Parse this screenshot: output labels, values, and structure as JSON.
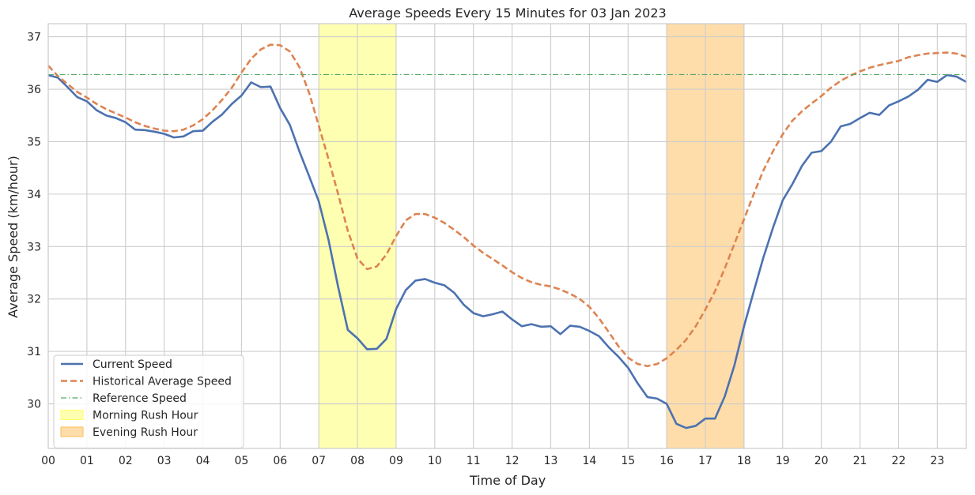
{
  "chart_data": {
    "type": "line",
    "title": "Average Speeds Every 15 Minutes for 03 Jan 2023",
    "xlabel": "Time of Day",
    "ylabel": "Average Speed (km/hour)",
    "xlim": [
      0,
      23.75
    ],
    "ylim": [
      29.15,
      37.25
    ],
    "x_ticks": [
      {
        "value": 0,
        "label": "00"
      },
      {
        "value": 1,
        "label": "01"
      },
      {
        "value": 2,
        "label": "02"
      },
      {
        "value": 3,
        "label": "03"
      },
      {
        "value": 4,
        "label": "04"
      },
      {
        "value": 5,
        "label": "05"
      },
      {
        "value": 6,
        "label": "06"
      },
      {
        "value": 7,
        "label": "07"
      },
      {
        "value": 8,
        "label": "08"
      },
      {
        "value": 9,
        "label": "09"
      },
      {
        "value": 10,
        "label": "10"
      },
      {
        "value": 11,
        "label": "11"
      },
      {
        "value": 12,
        "label": "12"
      },
      {
        "value": 13,
        "label": "13"
      },
      {
        "value": 14,
        "label": "14"
      },
      {
        "value": 15,
        "label": "15"
      },
      {
        "value": 16,
        "label": "16"
      },
      {
        "value": 17,
        "label": "17"
      },
      {
        "value": 18,
        "label": "18"
      },
      {
        "value": 19,
        "label": "19"
      },
      {
        "value": 20,
        "label": "20"
      },
      {
        "value": 21,
        "label": "21"
      },
      {
        "value": 22,
        "label": "22"
      },
      {
        "value": 23,
        "label": "23"
      }
    ],
    "y_ticks": [
      {
        "value": 30,
        "label": "30"
      },
      {
        "value": 31,
        "label": "31"
      },
      {
        "value": 32,
        "label": "32"
      },
      {
        "value": 33,
        "label": "33"
      },
      {
        "value": 34,
        "label": "34"
      },
      {
        "value": 35,
        "label": "35"
      },
      {
        "value": 36,
        "label": "36"
      },
      {
        "value": 37,
        "label": "37"
      }
    ],
    "grid": true,
    "legend_position": "lower-left",
    "series": [
      {
        "name": "Current Speed",
        "style": "solid",
        "color": "#4c72b0",
        "x": [
          0,
          0.25,
          0.5,
          0.75,
          1,
          1.25,
          1.5,
          1.75,
          2,
          2.25,
          2.5,
          2.75,
          3,
          3.25,
          3.5,
          3.75,
          4,
          4.25,
          4.5,
          4.75,
          5,
          5.25,
          5.5,
          5.75,
          6,
          6.25,
          6.5,
          6.75,
          7,
          7.25,
          7.5,
          7.75,
          8,
          8.25,
          8.5,
          8.75,
          9,
          9.25,
          9.5,
          9.75,
          10,
          10.25,
          10.5,
          10.75,
          11,
          11.25,
          11.5,
          11.75,
          12,
          12.25,
          12.5,
          12.75,
          13,
          13.25,
          13.5,
          13.75,
          14,
          14.25,
          14.5,
          14.75,
          15,
          15.25,
          15.5,
          15.75,
          16,
          16.25,
          16.5,
          16.75,
          17,
          17.25,
          17.5,
          17.75,
          18,
          18.25,
          18.5,
          18.75,
          19,
          19.25,
          19.5,
          19.75,
          20,
          20.25,
          20.5,
          20.75,
          21,
          21.25,
          21.5,
          21.75,
          22,
          22.25,
          22.5,
          22.75,
          23,
          23.25,
          23.5,
          23.75
        ],
        "values": [
          36.27,
          36.22,
          36.04,
          35.85,
          35.77,
          35.6,
          35.5,
          35.45,
          35.37,
          35.23,
          35.22,
          35.19,
          35.15,
          35.08,
          35.1,
          35.2,
          35.21,
          35.38,
          35.52,
          35.72,
          35.88,
          36.13,
          36.04,
          36.05,
          35.64,
          35.32,
          34.81,
          34.34,
          33.86,
          33.13,
          32.23,
          31.41,
          31.25,
          31.04,
          31.05,
          31.24,
          31.81,
          32.17,
          32.35,
          32.38,
          32.31,
          32.26,
          32.12,
          31.89,
          31.73,
          31.67,
          31.71,
          31.76,
          31.61,
          31.48,
          31.52,
          31.47,
          31.48,
          31.33,
          31.49,
          31.47,
          31.39,
          31.29,
          31.08,
          30.9,
          30.69,
          30.39,
          30.13,
          30.1,
          30.0,
          29.62,
          29.54,
          29.58,
          29.72,
          29.72,
          30.14,
          30.73,
          31.48,
          32.14,
          32.79,
          33.36,
          33.88,
          34.19,
          34.54,
          34.79,
          34.82,
          35.0,
          35.29,
          35.34,
          35.45,
          35.55,
          35.51,
          35.69,
          35.77,
          35.86,
          35.99,
          36.18,
          36.14,
          36.27,
          36.24,
          36.14
        ]
      },
      {
        "name": "Historical Average Speed",
        "style": "dashed",
        "color": "#dd8452",
        "x": [
          0,
          0.25,
          0.5,
          0.75,
          1,
          1.25,
          1.5,
          1.75,
          2,
          2.25,
          2.5,
          2.75,
          3,
          3.25,
          3.5,
          3.75,
          4,
          4.25,
          4.5,
          4.75,
          5,
          5.25,
          5.5,
          5.75,
          6,
          6.25,
          6.5,
          6.75,
          7,
          7.25,
          7.5,
          7.75,
          8,
          8.25,
          8.5,
          8.75,
          9,
          9.25,
          9.5,
          9.75,
          10,
          10.25,
          10.5,
          10.75,
          11,
          11.25,
          11.5,
          11.75,
          12,
          12.25,
          12.5,
          12.75,
          13,
          13.25,
          13.5,
          13.75,
          14,
          14.25,
          14.5,
          14.75,
          15,
          15.25,
          15.5,
          15.75,
          16,
          16.25,
          16.5,
          16.75,
          17,
          17.25,
          17.5,
          17.75,
          18,
          18.25,
          18.5,
          18.75,
          19,
          19.25,
          19.5,
          19.75,
          20,
          20.25,
          20.5,
          20.75,
          21,
          21.25,
          21.5,
          21.75,
          22,
          22.25,
          22.5,
          22.75,
          23,
          23.25,
          23.5,
          23.75
        ],
        "values": [
          36.45,
          36.25,
          36.1,
          35.95,
          35.84,
          35.72,
          35.62,
          35.54,
          35.46,
          35.37,
          35.3,
          35.25,
          35.21,
          35.2,
          35.23,
          35.31,
          35.43,
          35.6,
          35.8,
          36.03,
          36.32,
          36.58,
          36.76,
          36.85,
          36.84,
          36.72,
          36.42,
          35.93,
          35.3,
          34.67,
          34.0,
          33.3,
          32.77,
          32.57,
          32.62,
          32.85,
          33.2,
          33.5,
          33.62,
          33.62,
          33.55,
          33.45,
          33.32,
          33.18,
          33.02,
          32.88,
          32.76,
          32.64,
          32.51,
          32.4,
          32.32,
          32.27,
          32.24,
          32.18,
          32.1,
          32.0,
          31.85,
          31.63,
          31.37,
          31.1,
          30.88,
          30.76,
          30.72,
          30.76,
          30.87,
          31.03,
          31.22,
          31.48,
          31.8,
          32.15,
          32.58,
          33.05,
          33.52,
          34.0,
          34.45,
          34.82,
          35.14,
          35.4,
          35.58,
          35.73,
          35.87,
          36.03,
          36.16,
          36.26,
          36.34,
          36.41,
          36.46,
          36.5,
          36.54,
          36.61,
          36.65,
          36.68,
          36.69,
          36.7,
          36.68,
          36.62
        ]
      },
      {
        "name": "Reference Speed",
        "style": "dashdot",
        "color": "#55a868",
        "values": [
          36.28
        ]
      }
    ],
    "shaded_regions": [
      {
        "name": "Morning Rush Hour",
        "start": 7,
        "end": 9,
        "color": "#ffff66"
      },
      {
        "name": "Evening Rush Hour",
        "start": 16,
        "end": 18,
        "color": "#ffbb55"
      }
    ]
  }
}
